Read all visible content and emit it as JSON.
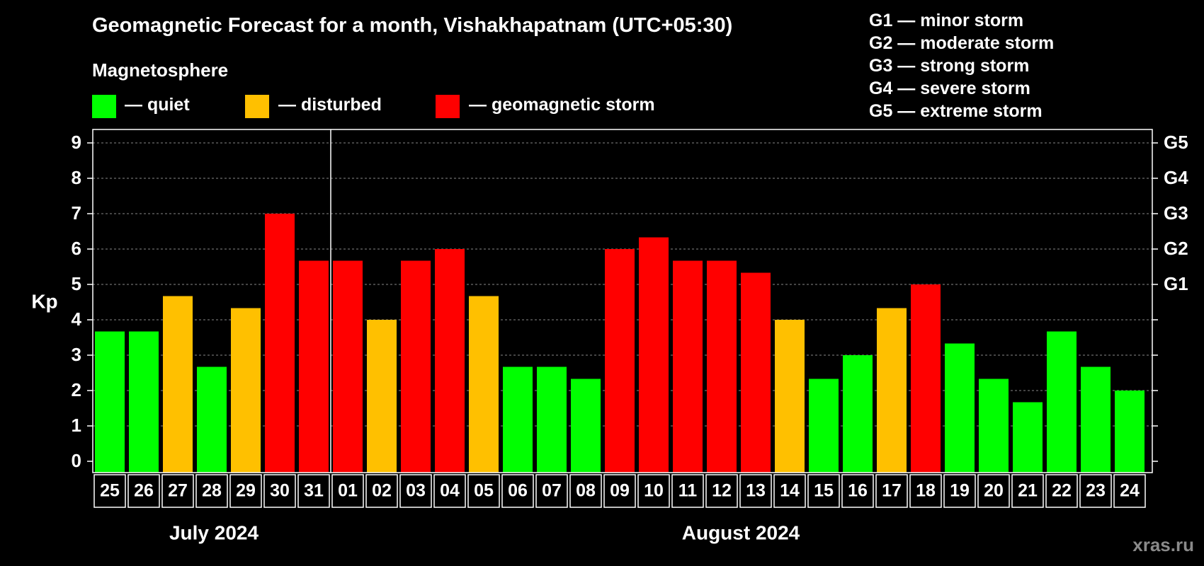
{
  "title": "Geomagnetic Forecast for a month, Vishakhapatnam (UTC+05:30)",
  "legend": {
    "heading": "Magnetosphere",
    "items": [
      {
        "label": "— quiet",
        "color": "#00ff00"
      },
      {
        "label": "— disturbed",
        "color": "#ffc000"
      },
      {
        "label": "— geomagnetic storm",
        "color": "#ff0000"
      }
    ]
  },
  "storm_scale": [
    "G1 — minor storm",
    "G2 — moderate storm",
    "G3 — strong storm",
    "G4 — severe storm",
    "G5 — extreme storm"
  ],
  "watermark": "xras.ru",
  "chart_data": {
    "type": "bar",
    "ylabel": "Kp",
    "ylim": [
      0,
      9
    ],
    "yticks": [
      0,
      1,
      2,
      3,
      4,
      5,
      6,
      7,
      8,
      9
    ],
    "right_axis_labels": [
      {
        "kp": 5,
        "label": "G1"
      },
      {
        "kp": 6,
        "label": "G2"
      },
      {
        "kp": 7,
        "label": "G3"
      },
      {
        "kp": 8,
        "label": "G4"
      },
      {
        "kp": 9,
        "label": "G5"
      }
    ],
    "grid": "dashed horizontal",
    "categories": [
      "25",
      "26",
      "27",
      "28",
      "29",
      "30",
      "31",
      "01",
      "02",
      "03",
      "04",
      "05",
      "06",
      "07",
      "08",
      "09",
      "10",
      "11",
      "12",
      "13",
      "14",
      "15",
      "16",
      "17",
      "18",
      "19",
      "20",
      "21",
      "22",
      "23",
      "24"
    ],
    "values": [
      3.67,
      3.67,
      4.67,
      2.67,
      4.33,
      7.0,
      5.67,
      5.67,
      4.0,
      5.67,
      6.0,
      4.67,
      2.67,
      2.67,
      2.33,
      6.0,
      6.33,
      5.67,
      5.67,
      5.33,
      4.0,
      2.33,
      3.0,
      4.33,
      5.0,
      3.33,
      2.33,
      1.67,
      3.67,
      2.67,
      2.0
    ],
    "levels": [
      "quiet",
      "quiet",
      "disturbed",
      "quiet",
      "disturbed",
      "storm",
      "storm",
      "storm",
      "disturbed",
      "storm",
      "storm",
      "disturbed",
      "quiet",
      "quiet",
      "quiet",
      "storm",
      "storm",
      "storm",
      "storm",
      "storm",
      "disturbed",
      "quiet",
      "quiet",
      "disturbed",
      "storm",
      "quiet",
      "quiet",
      "quiet",
      "quiet",
      "quiet",
      "quiet"
    ],
    "level_colors": {
      "quiet": "#00ff00",
      "disturbed": "#ffc000",
      "storm": "#ff0000"
    },
    "months": [
      {
        "label": "July 2024",
        "first_index": 0,
        "last_index": 6
      },
      {
        "label": "August 2024",
        "first_index": 7,
        "last_index": 30
      }
    ]
  }
}
